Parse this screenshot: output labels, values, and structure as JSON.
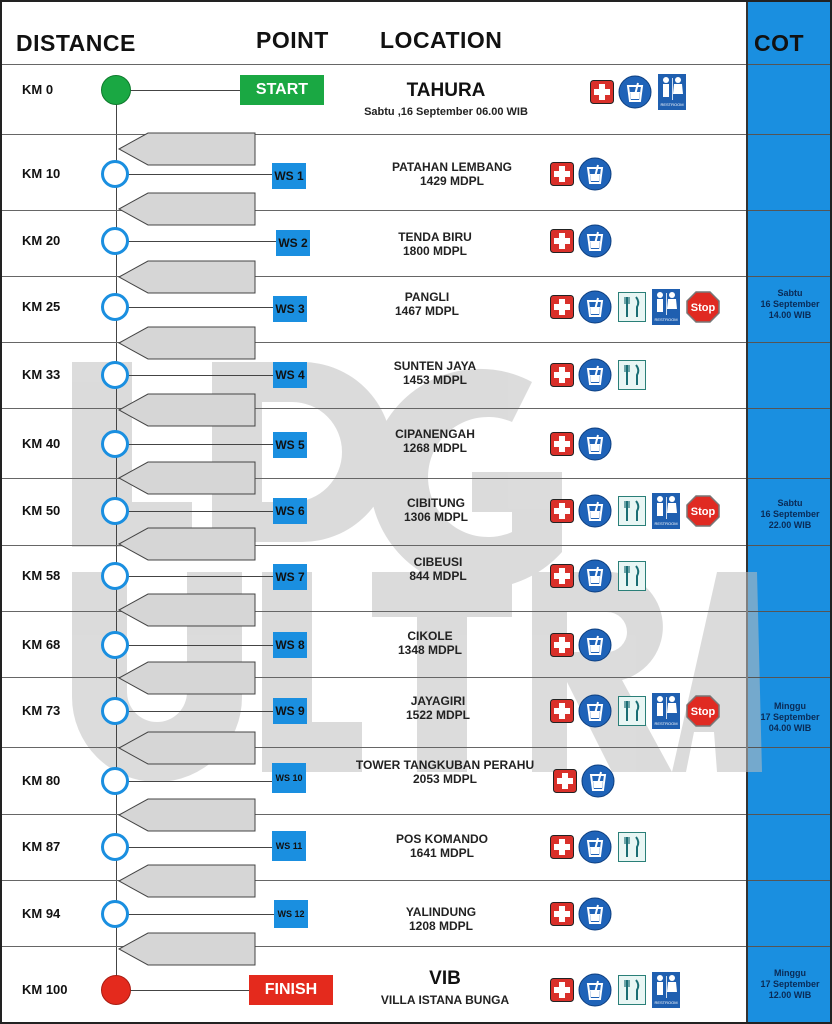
{
  "headers": {
    "distance": "DISTANCE",
    "point": "POINT",
    "location": "LOCATION",
    "cot": "COT"
  },
  "start_label": "START",
  "finish_label": "FINISH",
  "rows": [
    {
      "km": "KM 0",
      "point": "START",
      "loc1": "TAHURA",
      "loc2": "Sabtu ,16 September  06.00 WIB",
      "cot": "",
      "icons": [
        "first-aid",
        "water",
        "restroom"
      ]
    },
    {
      "km": "KM 10",
      "point": "WS 1",
      "loc1": "PATAHAN LEMBANG",
      "loc2": "1429 MDPL",
      "cot": "",
      "icons": [
        "first-aid",
        "water"
      ]
    },
    {
      "km": "KM 20",
      "point": "WS 2",
      "loc1": "TENDA BIRU",
      "loc2": "1800 MDPL",
      "cot": "",
      "icons": [
        "first-aid",
        "water"
      ]
    },
    {
      "km": "KM 25",
      "point": "WS 3",
      "loc1": "PANGLI",
      "loc2": "1467 MDPL",
      "cot": "Sabtu\n16 September\n14.00 WIB",
      "icons": [
        "first-aid",
        "water",
        "food",
        "restroom",
        "stop"
      ]
    },
    {
      "km": "KM 33",
      "point": "WS 4",
      "loc1": "SUNTEN JAYA",
      "loc2": "1453 MDPL",
      "cot": "",
      "icons": [
        "first-aid",
        "water",
        "food"
      ]
    },
    {
      "km": "KM 40",
      "point": "WS 5",
      "loc1": "CIPANENGAH",
      "loc2": "1268 MDPL",
      "cot": "",
      "icons": [
        "first-aid",
        "water"
      ]
    },
    {
      "km": "KM 50",
      "point": "WS 6",
      "loc1": "CIBITUNG",
      "loc2": "1306 MDPL",
      "cot": "Sabtu\n16 September\n22.00 WIB",
      "icons": [
        "first-aid",
        "water",
        "food",
        "restroom",
        "stop"
      ]
    },
    {
      "km": "KM 58",
      "point": "WS 7",
      "loc1": "CIBEUSI",
      "loc2": "844 MDPL",
      "cot": "",
      "icons": [
        "first-aid",
        "water",
        "food"
      ]
    },
    {
      "km": "KM 68",
      "point": "WS 8",
      "loc1": "CIKOLE",
      "loc2": "1348 MDPL",
      "cot": "",
      "icons": [
        "first-aid",
        "water"
      ]
    },
    {
      "km": "KM 73",
      "point": "WS 9",
      "loc1": "JAYAGIRI",
      "loc2": "1522 MDPL",
      "cot": "Minggu\n17 September\n04.00 WIB",
      "icons": [
        "first-aid",
        "water",
        "food",
        "restroom",
        "stop"
      ]
    },
    {
      "km": "KM 80",
      "point": "WS 10",
      "loc1": "TOWER TANGKUBAN PERAHU",
      "loc2": "2053 MDPL",
      "cot": "",
      "icons": [
        "first-aid",
        "water"
      ]
    },
    {
      "km": "KM 87",
      "point": "WS 11",
      "loc1": "POS KOMANDO",
      "loc2": "1641 MDPL",
      "cot": "",
      "icons": [
        "first-aid",
        "water",
        "food"
      ]
    },
    {
      "km": "KM 94",
      "point": "WS 12",
      "loc1": "YALINDUNG",
      "loc2": "1208 MDPL",
      "cot": "",
      "icons": [
        "first-aid",
        "water"
      ]
    },
    {
      "km": "KM 100",
      "point": "FINISH",
      "loc1": "VIB",
      "loc2": "VILLA ISTANA BUNGA",
      "cot": "Minggu\n17 September\n12.00 WIB",
      "icons": [
        "first-aid",
        "water",
        "food",
        "restroom"
      ]
    }
  ],
  "icon_text": {
    "restroom": "RESTROOM",
    "stop": "Stop"
  },
  "watermark": "LDG ULTRA",
  "colors": {
    "blue": "#1a8fe0",
    "green": "#1aa843",
    "red": "#e42a1d",
    "first_aid": "#d9302a"
  }
}
